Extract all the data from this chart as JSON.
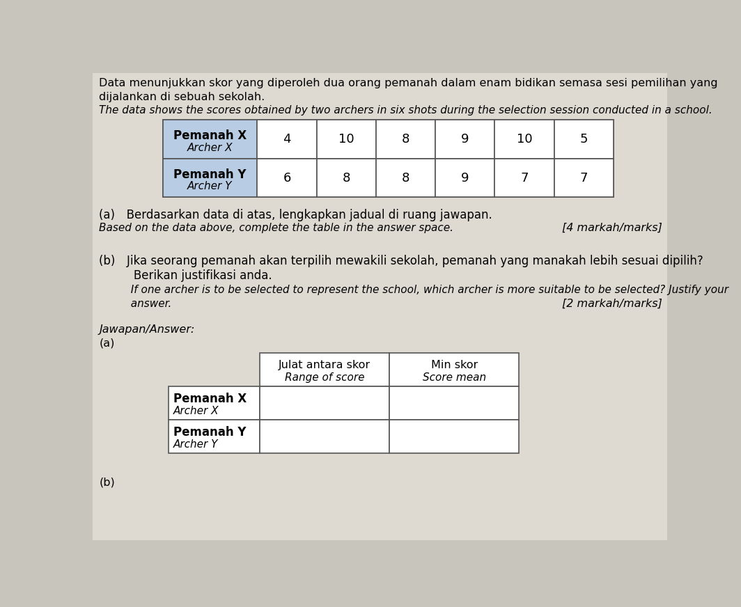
{
  "page_bg": "#c8c5bc",
  "inner_bg": "#dedad2",
  "title_text1": "Data menunjukkan skor yang diperoleh dua orang pemanah dalam enam bidikan semasa sesi pemilihan yang",
  "title_text2": "dijalankan di sebuah sekolah.",
  "title_italic": "The data shows the scores obtained by two archers in six shots during the selection session conducted in a school.",
  "archer_x_label1": "Pemanah X",
  "archer_x_label2": "Archer X",
  "archer_y_label1": "Pemanah Y",
  "archer_y_label2": "Archer Y",
  "archer_x_scores": [
    4,
    10,
    8,
    9,
    10,
    5
  ],
  "archer_y_scores": [
    6,
    8,
    8,
    9,
    7,
    7
  ],
  "header_bg": "#b8cce4",
  "part_a_bold": "(a) Berdasarkan data di atas, lengkapkan jadual di ruang jawapan.",
  "part_a_italic": "Based on the data above, complete the table in the answer space.",
  "marks_a": "[4 markah/marks]",
  "part_b_line1": "(b) Jika seorang pemanah akan terpilih mewakili sekolah, pemanah yang manakah lebih sesuai dipilih?",
  "part_b_line2": "   Berikan justifikasi anda.",
  "part_b_italic1": "   If one archer is to be selected to represent the school, which archer is more suitable to be selected? Justify your",
  "part_b_italic2": "   answer.",
  "marks_b": "[2 markah/marks]",
  "jawapan_label": "Jawapan/Answer:",
  "part_a_answer": "(a)",
  "part_b_answer": "(b)",
  "col_header1_line1": "Julat antara skor",
  "col_header1_line2": "Range of score",
  "col_header2_line1": "Min skor",
  "col_header2_line2": "Score mean",
  "answer_row1_bold": "Pemanah X",
  "answer_row1_italic": "Archer X",
  "answer_row2_bold": "Pemanah Y",
  "answer_row2_italic": "Archer Y"
}
